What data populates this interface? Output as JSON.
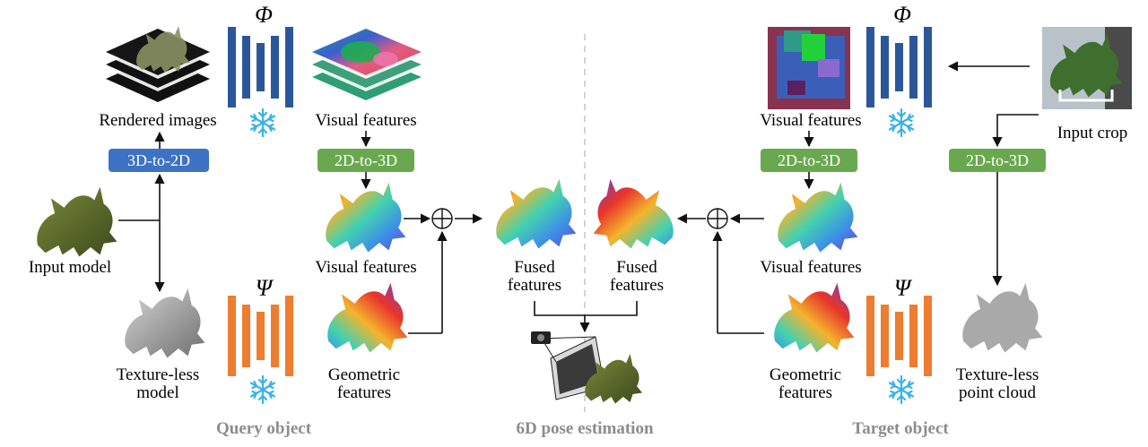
{
  "left": {
    "section_label": "Query object",
    "rendered_images_label": "Rendered images",
    "visual_features_top_label": "Visual features",
    "btn_3d_to_2d": "3D-to-2D",
    "btn_2d_to_3d": "2D-to-3D",
    "input_model_label": "Input model",
    "visual_features_cloud_label": "Visual features",
    "textureless_model_label_1": "Texture-less",
    "textureless_model_label_2": "model",
    "geometric_label_1": "Geometric",
    "geometric_label_2": "features",
    "phi_symbol": "Φ",
    "psi_symbol": "Ψ"
  },
  "center": {
    "section_label": "6D pose estimation",
    "fused_left_1": "Fused",
    "fused_left_2": "features",
    "fused_right_1": "Fused",
    "fused_right_2": "features"
  },
  "right": {
    "section_label": "Target object",
    "visual_features_top_label": "Visual features",
    "btn_2d_to_3d_a": "2D-to-3D",
    "btn_2d_to_3d_b": "2D-to-3D",
    "input_crop_label": "Input crop",
    "visual_features_cloud_label": "Visual features",
    "geometric_label_1": "Geometric",
    "geometric_label_2": "features",
    "textureless_cloud_label_1": "Texture-less",
    "textureless_cloud_label_2": "point cloud",
    "phi_symbol": "Φ",
    "psi_symbol": "Ψ"
  },
  "colors": {
    "encoder_phi": "#2b579a",
    "encoder_psi": "#ed7d31",
    "btn_blue": "#3e72c4",
    "btn_green": "#6aa84f",
    "snowflake": "#38b3e8",
    "section_gray": "#8c8c8c"
  }
}
